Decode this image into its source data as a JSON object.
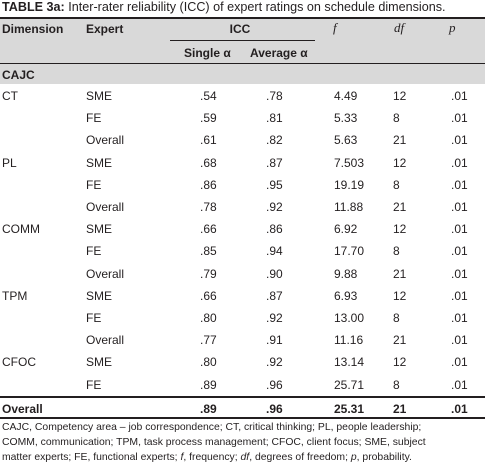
{
  "caption": {
    "label": "TABLE 3a:",
    "text": " Inter-rater reliability (ICC) of expert ratings on schedule dimensions."
  },
  "headers": {
    "dimension": "Dimension",
    "expert": "Expert",
    "icc": "ICC",
    "f": "f",
    "df": "df",
    "p": "p",
    "single": "Single α",
    "average": "Average α"
  },
  "section": "CAJC",
  "rows": [
    {
      "dimension": "CT",
      "expert": "SME",
      "single": ".54",
      "average": ".78",
      "f": "4.49",
      "df": "12",
      "p": ".01"
    },
    {
      "dimension": "",
      "expert": "FE",
      "single": ".59",
      "average": ".81",
      "f": "5.33",
      "df": "8",
      "p": ".01"
    },
    {
      "dimension": "",
      "expert": "Overall",
      "single": ".61",
      "average": ".82",
      "f": "5.63",
      "df": "21",
      "p": ".01"
    },
    {
      "dimension": "PL",
      "expert": "SME",
      "single": ".68",
      "average": ".87",
      "f": "7.503",
      "df": "12",
      "p": ".01"
    },
    {
      "dimension": "",
      "expert": "FE",
      "single": ".86",
      "average": ".95",
      "f": "19.19",
      "df": "8",
      "p": ".01"
    },
    {
      "dimension": "",
      "expert": "Overall",
      "single": ".78",
      "average": ".92",
      "f": "11.88",
      "df": "21",
      "p": ".01"
    },
    {
      "dimension": "COMM",
      "expert": "SME",
      "single": ".66",
      "average": ".86",
      "f": "6.92",
      "df": "12",
      "p": ".01"
    },
    {
      "dimension": "",
      "expert": "FE",
      "single": ".85",
      "average": ".94",
      "f": "17.70",
      "df": "8",
      "p": ".01"
    },
    {
      "dimension": "",
      "expert": "Overall",
      "single": ".79",
      "average": ".90",
      "f": "9.88",
      "df": "21",
      "p": ".01"
    },
    {
      "dimension": "TPM",
      "expert": "SME",
      "single": ".66",
      "average": ".87",
      "f": "6.93",
      "df": "12",
      "p": ".01"
    },
    {
      "dimension": "",
      "expert": "FE",
      "single": ".80",
      "average": ".92",
      "f": "13.00",
      "df": "8",
      "p": ".01"
    },
    {
      "dimension": "",
      "expert": "Overall",
      "single": ".77",
      "average": ".91",
      "f": "11.16",
      "df": "21",
      "p": ".01"
    },
    {
      "dimension": "CFOC",
      "expert": "SME",
      "single": ".80",
      "average": ".92",
      "f": "13.14",
      "df": "12",
      "p": ".01"
    },
    {
      "dimension": "",
      "expert": "FE",
      "single": ".89",
      "average": ".96",
      "f": "25.71",
      "df": "8",
      "p": ".01"
    }
  ],
  "total": {
    "dimension": "Overall",
    "expert": "",
    "single": ".89",
    "average": ".96",
    "f": "25.31",
    "df": "21",
    "p": ".01"
  },
  "footnote": {
    "line1": "CAJC, Competency area – job correspondence; CT, critical thinking; PL, people leadership;",
    "line2": "COMM, communication; TPM, task process management; CFOC, client focus; SME, subject",
    "line3_a": "matter experts; FE, functional experts; ",
    "f": "f",
    "line3_b": ", frequency; ",
    "df": "df",
    "line3_c": ", degrees of freedom; ",
    "p": "p",
    "line3_d": ", probability."
  }
}
